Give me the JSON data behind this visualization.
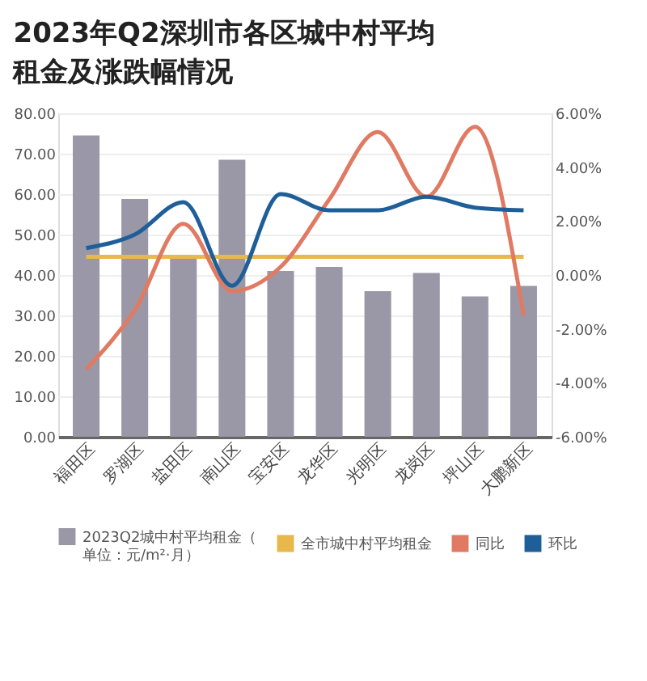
{
  "chart_data": {
    "type": "bar",
    "title": "2023年Q2深圳市各区城中村平均租金及涨跌幅情况",
    "categories": [
      "福田区",
      "罗湖区",
      "盐田区",
      "南山区",
      "宝安区",
      "龙华区",
      "光明区",
      "龙岗区",
      "坪山区",
      "大鹏新区"
    ],
    "series": [
      {
        "name": "2023Q2城中村平均租金（单位：元/m²·月）",
        "color": "#9a98a6",
        "values": [
          74.5,
          58.8,
          44,
          68.5,
          41,
          42,
          36,
          40.5,
          34.7,
          37.3
        ]
      },
      {
        "name": "全市城中村平均租金",
        "type": "line",
        "color": "#e8b84a",
        "values": [
          44.5,
          44.5,
          44.5,
          44.5,
          44.5,
          44.5,
          44.5,
          44.5,
          44.5,
          44.5
        ]
      },
      {
        "name": "同比",
        "type": "line",
        "axis": "y2",
        "color": "#e07a62",
        "values": [
          -3.5,
          -1.3,
          1.9,
          -0.6,
          0.3,
          2.8,
          5.3,
          2.9,
          5.5,
          -1.5
        ]
      },
      {
        "name": "环比",
        "type": "line",
        "axis": "y2",
        "color": "#1f5f99",
        "values": [
          1.0,
          1.5,
          2.7,
          -0.4,
          3.0,
          2.4,
          2.4,
          2.9,
          2.5,
          2.4
        ]
      }
    ],
    "ylim": [
      0,
      80
    ],
    "yticks": [
      {
        "value": 0,
        "label": "0.00"
      },
      {
        "value": 10,
        "label": "10.00"
      },
      {
        "value": 20,
        "label": "20.00"
      },
      {
        "value": 30,
        "label": "30.00"
      },
      {
        "value": 40,
        "label": "40.00"
      },
      {
        "value": 50,
        "label": "50.00"
      },
      {
        "value": 60,
        "label": "60.00"
      },
      {
        "value": 70,
        "label": "70.00"
      },
      {
        "value": 80,
        "label": "80.00"
      }
    ],
    "y2lim": [
      -6,
      6
    ],
    "y2ticks": [
      {
        "value": -6,
        "label": "-6.00%"
      },
      {
        "value": -4,
        "label": "-4.00%"
      },
      {
        "value": -2,
        "label": "-2.00%"
      },
      {
        "value": 0,
        "label": "0.00%"
      },
      {
        "value": 2,
        "label": "2.00%"
      },
      {
        "value": 4,
        "label": "4.00%"
      },
      {
        "value": 6,
        "label": "6.00%"
      }
    ],
    "grid": "y",
    "legend": "bottom"
  }
}
